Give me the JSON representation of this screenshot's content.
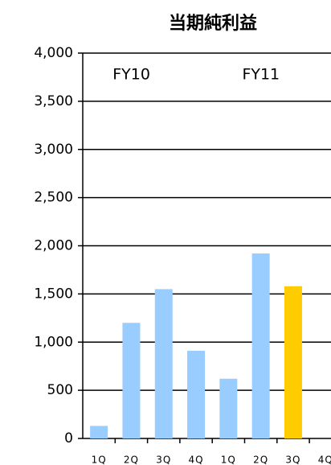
{
  "chart_data": {
    "type": "bar",
    "title": "当期純利益",
    "categories": [
      "1Q",
      "2Q",
      "3Q",
      "4Q",
      "1Q",
      "2Q",
      "3Q",
      "4Q"
    ],
    "values": [
      130,
      1200,
      1550,
      910,
      620,
      1920,
      1580,
      null
    ],
    "colors": [
      "#99ccff",
      "#99ccff",
      "#99ccff",
      "#99ccff",
      "#99ccff",
      "#99ccff",
      "#ffcc00",
      "#99ccff"
    ],
    "groups": [
      {
        "label": "FY10",
        "categories": [
          0,
          1,
          2,
          3
        ]
      },
      {
        "label": "FY11",
        "categories": [
          4,
          5,
          6,
          7
        ]
      }
    ],
    "ylim": [
      0,
      4000
    ],
    "yticks": [
      0,
      500,
      {
        "value": 1000,
        "label": "1,000"
      },
      {
        "value": 1500,
        "label": "1,500"
      },
      {
        "value": 2000,
        "label": "2,000"
      },
      {
        "value": 2500,
        "label": "2,500"
      },
      {
        "value": 3000,
        "label": "3,000"
      },
      {
        "value": 3500,
        "label": "3,500"
      },
      {
        "value": 4000,
        "label": "4,000"
      }
    ],
    "grid": true
  }
}
